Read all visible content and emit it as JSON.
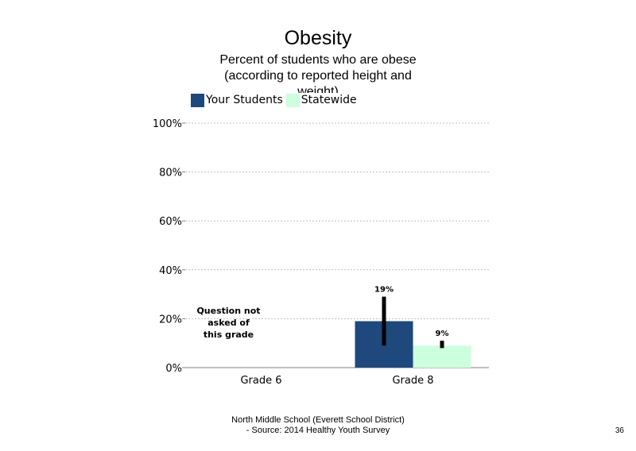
{
  "chart_data": {
    "type": "bar",
    "title": "Obesity",
    "subtitle": "Percent of students who are obese (according to reported height and weight)",
    "categories": [
      "Grade 6",
      "Grade 8"
    ],
    "series": [
      {
        "name": "Your Students",
        "color": "#1f497d",
        "values": [
          null,
          19
        ],
        "error_low": [
          null,
          9
        ],
        "error_high": [
          null,
          29
        ],
        "labels": [
          "",
          "19%"
        ]
      },
      {
        "name": "Statewide",
        "color": "#ccffdd",
        "values": [
          null,
          9
        ],
        "error_low": [
          null,
          8
        ],
        "error_high": [
          null,
          11
        ],
        "labels": [
          "",
          "9%"
        ]
      }
    ],
    "ylim": [
      0,
      100
    ],
    "yticks": [
      0,
      20,
      40,
      60,
      80,
      100
    ],
    "ytick_labels": [
      "0%",
      "20%",
      "40%",
      "60%",
      "80%",
      "100%"
    ],
    "grid": "dotted horizontal",
    "legend": "top-left",
    "annotation": {
      "category": "Grade 6",
      "lines": [
        "Question not",
        "asked of",
        "this grade"
      ]
    }
  },
  "footer": {
    "line1": "North Middle School (Everett School District)",
    "line2": "- Source: 2014 Healthy Youth Survey"
  },
  "page_number": "36"
}
